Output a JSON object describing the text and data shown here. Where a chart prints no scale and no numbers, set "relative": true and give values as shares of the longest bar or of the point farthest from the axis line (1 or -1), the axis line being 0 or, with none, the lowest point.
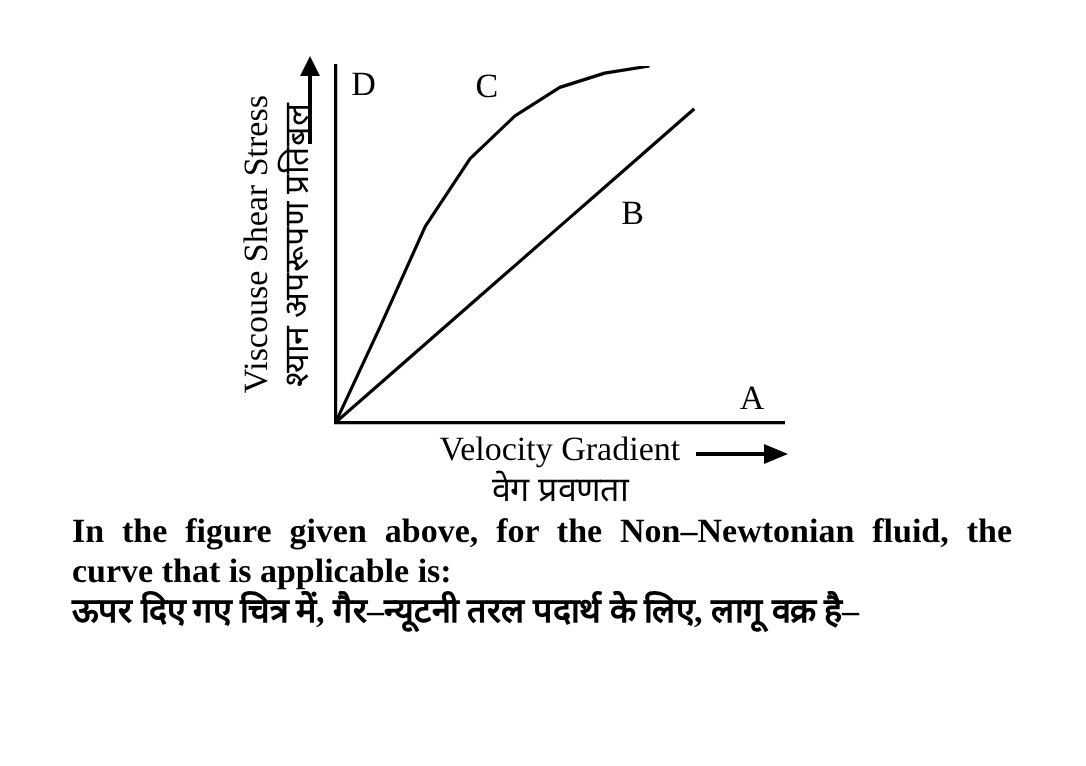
{
  "chart_data": {
    "type": "line",
    "relative": true,
    "xlabel": "Velocity Gradient\nवेग प्रवणता",
    "ylabel": "Viscouse Shear Stress\nश्यान अपरूपण प्रतिबल",
    "categories": [
      null,
      null,
      null,
      null,
      null,
      null,
      null,
      null,
      null,
      null,
      null
    ],
    "tick_labels": false,
    "grid": false,
    "legend": false,
    "marker": "none",
    "line_style": "solid",
    "series": [
      {
        "name": "C",
        "color": "#000000",
        "values": [
          0,
          0.27,
          0.55,
          0.74,
          0.86,
          0.94,
          0.98,
          1,
          null,
          null,
          null
        ]
      },
      {
        "name": "B",
        "color": "#000000",
        "values": [
          0,
          0.11,
          0.22,
          0.33,
          0.44,
          0.55,
          0.66,
          0.77,
          0.88,
          null,
          null
        ]
      }
    ],
    "annotations": [
      "A",
      "D",
      "In the figure given above, for the Non–Newtonian fluid, the curve that is applicable is:",
      "ऊपर दिए गए चित्र में, गैर–न्यूटनी तरल पदार्थ के लिए, लागू वक्र है–"
    ]
  }
}
